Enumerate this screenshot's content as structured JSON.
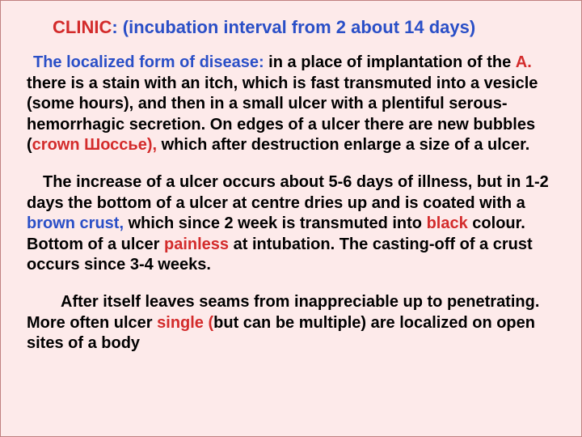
{
  "title": {
    "clinic": "CLINIC",
    "colon": ":",
    "subtitle": " (incubation interval from 2 about 14 days)"
  },
  "p1": {
    "t1": " The localized form of disease:",
    "t2": " in a place of implantation of the ",
    "t3": "А.",
    "t4": " there is a stain with an itch, which is fast transmuted into a vesicle (some hours), and then in a small ulcer with a plentiful serous-hemorrhagic secretion. On edges of a ulcer there are new bubbles (",
    "t5": "crown Шоссье),",
    "t6": " which after destruction enlarge a size of a ulcer."
  },
  "p2": {
    "t1": "The increase of a ulcer occurs about 5-6 days of illness, but in 1-2 days the bottom of a ulcer at centre dries up and is coated with a ",
    "t2": "brown crust,",
    "t3": " which since 2 week is transmuted into ",
    "t4": "black",
    "t5": " colour. Bottom of a ulcer ",
    "t6": "painless",
    "t7": " at intubation. The casting-off of a crust occurs since 3-4 weeks."
  },
  "p3": {
    "t1": "After itself leaves seams from inappreciable up to penetrating. More often ulcer ",
    "t2": "single (",
    "t3": "but can be multiple) are localized on open sites of a body"
  }
}
